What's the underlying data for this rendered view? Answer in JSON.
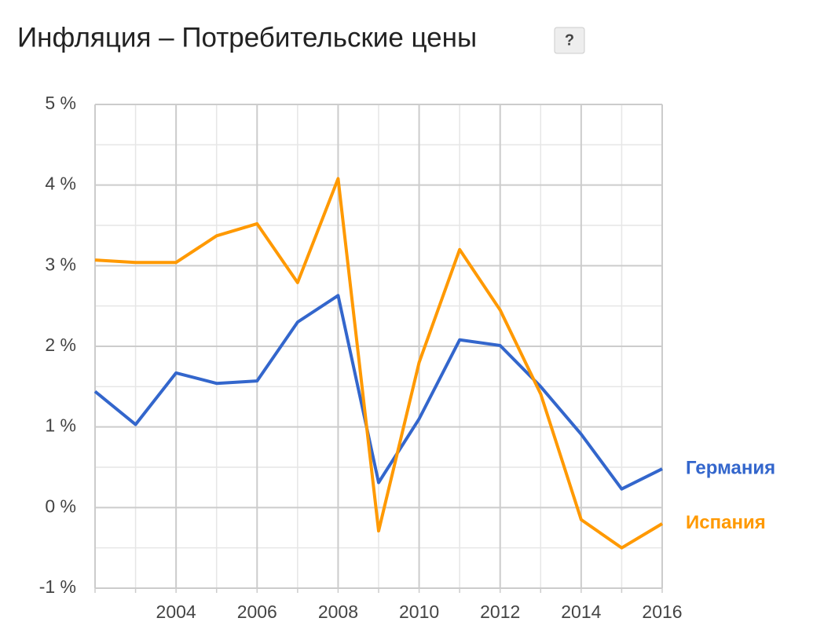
{
  "chart_data": {
    "type": "line",
    "title": "Инфляция – Потребительские цены",
    "help_button": "?",
    "x": [
      2002,
      2003,
      2004,
      2005,
      2006,
      2007,
      2008,
      2009,
      2010,
      2011,
      2012,
      2013,
      2014,
      2015,
      2016
    ],
    "series": [
      {
        "name": "Германия",
        "color": "#3366cc",
        "values": [
          1.44,
          1.03,
          1.67,
          1.54,
          1.57,
          2.3,
          2.63,
          0.31,
          1.1,
          2.08,
          2.01,
          1.5,
          0.91,
          0.23,
          0.48
        ]
      },
      {
        "name": "Испания",
        "color": "#ff9900",
        "values": [
          3.07,
          3.04,
          3.04,
          3.37,
          3.52,
          2.79,
          4.08,
          -0.29,
          1.8,
          3.2,
          2.45,
          1.41,
          -0.15,
          -0.5,
          -0.2
        ]
      }
    ],
    "xlim": [
      2002,
      2016
    ],
    "xticks": [
      2004,
      2006,
      2008,
      2010,
      2012,
      2014,
      2016
    ],
    "ylim": [
      -1,
      5
    ],
    "yticks": [
      {
        "value": -1,
        "label": "-1 %"
      },
      {
        "value": 0,
        "label": "0 %"
      },
      {
        "value": 1,
        "label": "1 %"
      },
      {
        "value": 2,
        "label": "2 %"
      },
      {
        "value": 3,
        "label": "3 %"
      },
      {
        "value": 4,
        "label": "4 %"
      },
      {
        "value": 5,
        "label": "5 %"
      }
    ],
    "y_minor_ticks": [
      -0.5,
      0.5,
      1.5,
      2.5,
      3.5,
      4.5
    ],
    "grid": true
  }
}
